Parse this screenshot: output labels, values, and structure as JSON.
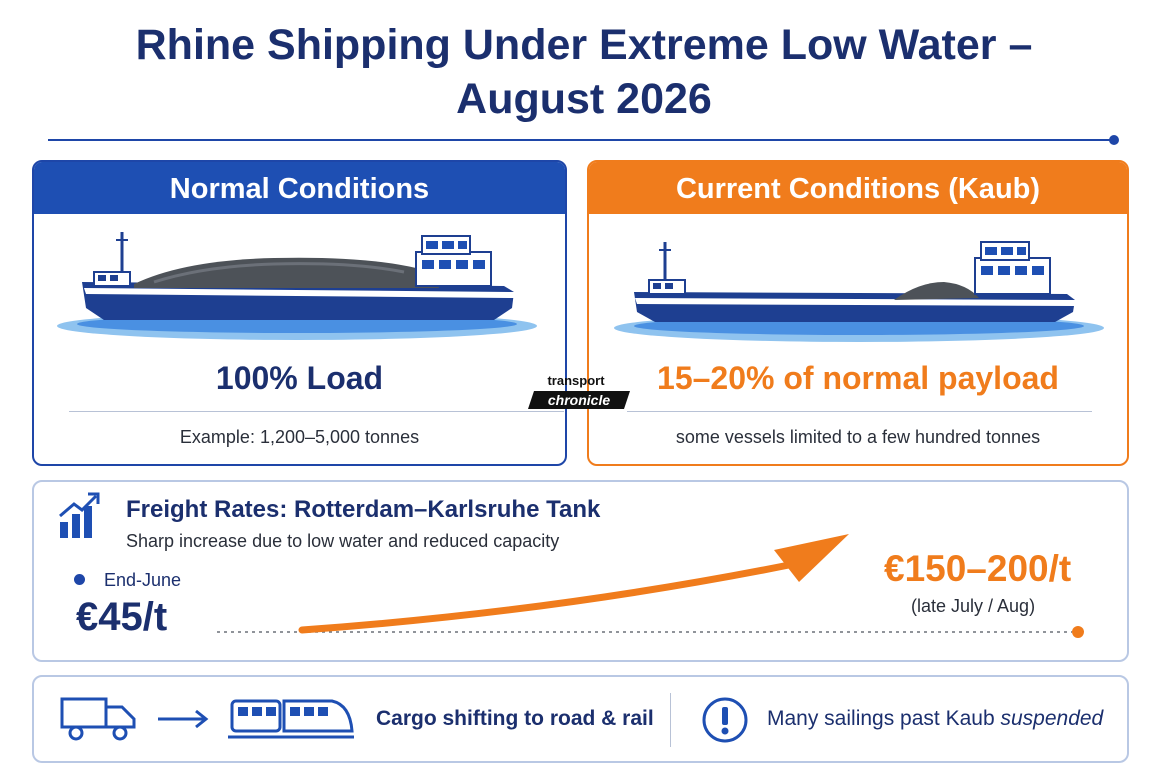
{
  "header": {
    "title_line1": "Rhine Shipping Under Extreme Low Water –",
    "title_line2": "August 2026"
  },
  "normal": {
    "heading": "Normal Conditions",
    "load": "100% Load",
    "example": "Example: 1,200–5,000 tonnes"
  },
  "current": {
    "heading": "Current Conditions (Kaub)",
    "payload": "15–20% of normal payload",
    "note": "some vessels limited to a few hundred tonnes"
  },
  "watermark": {
    "line1": "transport",
    "line2": "chronicle"
  },
  "freight": {
    "title": "Freight Rates: Rotterdam–Karlsruhe Tank",
    "subtitle": "Sharp increase due to low water and reduced capacity",
    "start_label": "End-June",
    "start_value": "€45/t",
    "end_value": "€150–200/t",
    "end_label": "(late July / Aug)"
  },
  "bottom": {
    "shift_label": "Cargo shifting to road & rail",
    "suspend_text": "Many sailings past Kaub",
    "suspend_emphasis": "suspended"
  },
  "colors": {
    "navy": "#1b2f6e",
    "blue": "#1e4fb3",
    "orange": "#f07c1c",
    "water": "#4a90e2"
  },
  "icons": {
    "freight": "bar-chart-up-icon",
    "truck": "truck-icon",
    "arrow": "arrow-right-icon",
    "train": "train-icon",
    "alert": "exclamation-circle-icon"
  }
}
